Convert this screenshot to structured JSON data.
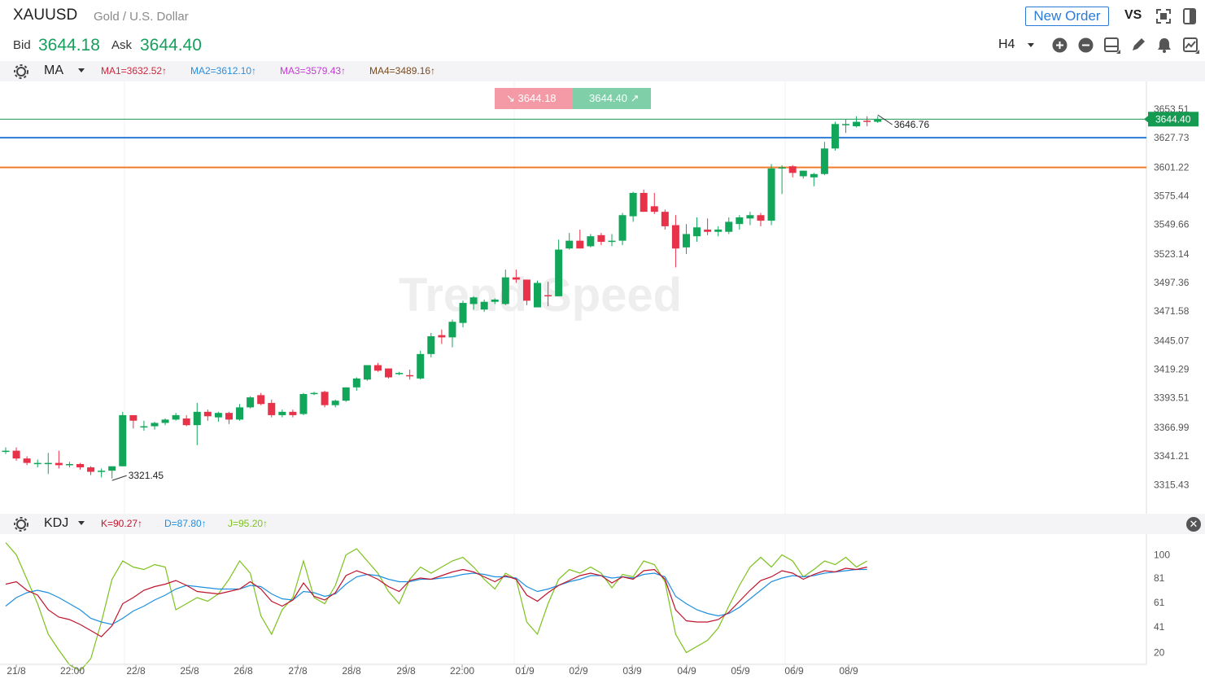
{
  "header": {
    "symbol": "XAUUSD",
    "name": "Gold / U.S. Dollar",
    "bid_label": "Bid",
    "bid": "3644.18",
    "ask_label": "Ask",
    "ask": "3644.40",
    "new_order": "New Order",
    "vs": "VS",
    "timeframe": "H4"
  },
  "ma_bar": {
    "indicator": "MA",
    "ma1": "MA1=3632.52↑",
    "ma2": "MA2=3612.10↑",
    "ma3": "MA3=3579.43↑",
    "ma4": "MA4=3489.16↑",
    "colors": {
      "ma1": "#d0263c",
      "ma2": "#2b8ddc",
      "ma3": "#c43bd6",
      "ma4": "#7a4b20"
    }
  },
  "quote_boxes": {
    "bid": "3644.18",
    "ask": "3644.40"
  },
  "kdj_bar": {
    "indicator": "KDJ",
    "k": "K=90.27↑",
    "d": "D=87.80↑",
    "j": "J=95.20↑",
    "colors": {
      "k": "#c0142c",
      "d": "#1e8fe0",
      "j": "#7cc21c"
    }
  },
  "watermark": "Trend Speed",
  "chart_data": {
    "type": "candlestick",
    "y_ticks": [
      "3653.51",
      "3627.73",
      "3601.22",
      "3575.44",
      "3549.66",
      "3523.14",
      "3497.36",
      "3471.58",
      "3445.07",
      "3419.29",
      "3393.51",
      "3366.99",
      "3341.21",
      "3315.43"
    ],
    "current_price_label": "3644.40",
    "high_annotation": "3646.76",
    "low_annotation": "3321.45",
    "levels": {
      "current": 3644.4,
      "blue_line": 3627.7,
      "orange_line": 3601.0
    },
    "x_labels": [
      "21/8",
      "22:00",
      "22/8",
      "25/8",
      "26/8",
      "27/8",
      "28/8",
      "29/8",
      "22:00",
      "01/9",
      "02/9",
      "03/9",
      "04/9",
      "05/9",
      "06/9",
      "08/9"
    ],
    "candles": [
      [
        3346,
        3349,
        3343,
        3346
      ],
      [
        3346,
        3349,
        3337,
        3339
      ],
      [
        3339,
        3341,
        3333,
        3335
      ],
      [
        3335,
        3338,
        3331,
        3335
      ],
      [
        3335,
        3344,
        3325,
        3335
      ],
      [
        3335,
        3346,
        3330,
        3333
      ],
      [
        3333,
        3336,
        3331,
        3334
      ],
      [
        3334,
        3335,
        3329,
        3331
      ],
      [
        3331,
        3332,
        3324,
        3327
      ],
      [
        3327,
        3330,
        3322,
        3328
      ],
      [
        3328,
        3330,
        3321,
        3332
      ],
      [
        3332,
        3381,
        3332,
        3378
      ],
      [
        3378,
        3378,
        3366,
        3373
      ],
      [
        3367,
        3373,
        3364,
        3368
      ],
      [
        3368,
        3372,
        3365,
        3371
      ],
      [
        3371,
        3375,
        3369,
        3374
      ],
      [
        3374,
        3380,
        3373,
        3378
      ],
      [
        3375,
        3378,
        3368,
        3369
      ],
      [
        3369,
        3389,
        3351,
        3381
      ],
      [
        3381,
        3383,
        3373,
        3377
      ],
      [
        3376,
        3381,
        3372,
        3380
      ],
      [
        3380,
        3381,
        3370,
        3374
      ],
      [
        3374,
        3388,
        3373,
        3385
      ],
      [
        3385,
        3395,
        3384,
        3394
      ],
      [
        3396,
        3398,
        3387,
        3388
      ],
      [
        3389,
        3392,
        3376,
        3378
      ],
      [
        3378,
        3383,
        3376,
        3381
      ],
      [
        3381,
        3383,
        3376,
        3378
      ],
      [
        3379,
        3398,
        3378,
        3397
      ],
      [
        3398,
        3399,
        3396,
        3398
      ],
      [
        3399,
        3400,
        3385,
        3387
      ],
      [
        3387,
        3392,
        3385,
        3391
      ],
      [
        3391,
        3403,
        3390,
        3403
      ],
      [
        3403,
        3412,
        3400,
        3411
      ],
      [
        3410,
        3423,
        3409,
        3423
      ],
      [
        3423,
        3425,
        3417,
        3418
      ],
      [
        3420,
        3420,
        3411,
        3412
      ],
      [
        3415,
        3417,
        3414,
        3416
      ],
      [
        3414,
        3419,
        3410,
        3413
      ],
      [
        3411,
        3436,
        3410,
        3433
      ],
      [
        3433,
        3452,
        3430,
        3449
      ],
      [
        3450,
        3455,
        3442,
        3448
      ],
      [
        3448,
        3464,
        3439,
        3462
      ],
      [
        3461,
        3481,
        3457,
        3479
      ],
      [
        3478,
        3485,
        3473,
        3484
      ],
      [
        3473,
        3482,
        3471,
        3480
      ],
      [
        3480,
        3483,
        3478,
        3482
      ],
      [
        3478,
        3509,
        3477,
        3502
      ],
      [
        3502,
        3509,
        3497,
        3500
      ],
      [
        3500,
        3500,
        3477,
        3481
      ],
      [
        3475,
        3499,
        3475,
        3497
      ],
      [
        3486,
        3498,
        3476,
        3485
      ],
      [
        3485,
        3536,
        3485,
        3527
      ],
      [
        3528,
        3542,
        3527,
        3535
      ],
      [
        3535,
        3545,
        3528,
        3528
      ],
      [
        3530,
        3541,
        3529,
        3539
      ],
      [
        3540,
        3542,
        3531,
        3534
      ],
      [
        3534,
        3541,
        3530,
        3535
      ],
      [
        3535,
        3560,
        3531,
        3558
      ],
      [
        3557,
        3579,
        3552,
        3578
      ],
      [
        3578,
        3581,
        3561,
        3561
      ],
      [
        3566,
        3578,
        3559,
        3561
      ],
      [
        3561,
        3563,
        3545,
        3548
      ],
      [
        3549,
        3558,
        3511,
        3528
      ],
      [
        3529,
        3550,
        3523,
        3541
      ],
      [
        3539,
        3556,
        3534,
        3547
      ],
      [
        3545,
        3555,
        3540,
        3543
      ],
      [
        3543,
        3548,
        3539,
        3545
      ],
      [
        3543,
        3556,
        3541,
        3552
      ],
      [
        3550,
        3558,
        3545,
        3556
      ],
      [
        3555,
        3561,
        3549,
        3558
      ],
      [
        3558,
        3560,
        3548,
        3553
      ],
      [
        3553,
        3604,
        3549,
        3600
      ],
      [
        3600,
        3603,
        3577,
        3601
      ],
      [
        3602,
        3603,
        3592,
        3596
      ],
      [
        3593,
        3598,
        3591,
        3598
      ],
      [
        3592,
        3596,
        3584,
        3595
      ],
      [
        3595,
        3624,
        3594,
        3618
      ],
      [
        3618,
        3642,
        3616,
        3640
      ],
      [
        3640,
        3644,
        3632,
        3640
      ],
      [
        3638,
        3647,
        3637,
        3642
      ],
      [
        3643,
        3647,
        3638,
        3642
      ],
      [
        3642,
        3647,
        3641,
        3644
      ]
    ]
  },
  "kdj_chart": {
    "y_ticks": [
      "100",
      "81",
      "61",
      "41",
      "20"
    ],
    "K": [
      76,
      78,
      71,
      67,
      55,
      49,
      47,
      43,
      38,
      33,
      42,
      60,
      65,
      71,
      74,
      76,
      79,
      75,
      70,
      69,
      68,
      70,
      72,
      78,
      72,
      62,
      58,
      63,
      77,
      66,
      63,
      69,
      83,
      87,
      84,
      80,
      74,
      70,
      79,
      81,
      80,
      83,
      86,
      88,
      86,
      82,
      78,
      83,
      80,
      67,
      62,
      69,
      75,
      79,
      83,
      85,
      83,
      77,
      82,
      80,
      87,
      88,
      80,
      55,
      46,
      45,
      45,
      47,
      53,
      62,
      71,
      79,
      82,
      87,
      85,
      80,
      84,
      87,
      86,
      89,
      88,
      90
    ],
    "D": [
      58,
      65,
      69,
      71,
      69,
      65,
      60,
      55,
      48,
      45,
      43,
      48,
      54,
      58,
      63,
      67,
      72,
      75,
      74,
      73,
      72,
      72,
      72,
      75,
      74,
      68,
      64,
      63,
      70,
      69,
      66,
      68,
      76,
      82,
      84,
      83,
      80,
      78,
      78,
      80,
      80,
      81,
      82,
      84,
      85,
      84,
      82,
      82,
      81,
      74,
      70,
      72,
      75,
      78,
      80,
      83,
      83,
      81,
      82,
      81,
      84,
      85,
      82,
      66,
      60,
      55,
      52,
      50,
      52,
      57,
      64,
      71,
      78,
      81,
      83,
      82,
      83,
      85,
      86,
      87,
      88,
      88
    ],
    "J": [
      110,
      100,
      80,
      60,
      35,
      22,
      10,
      5,
      15,
      45,
      80,
      95,
      90,
      88,
      92,
      90,
      55,
      60,
      65,
      62,
      68,
      80,
      95,
      85,
      50,
      35,
      55,
      65,
      95,
      65,
      60,
      75,
      100,
      105,
      95,
      85,
      70,
      60,
      80,
      90,
      85,
      90,
      95,
      98,
      90,
      80,
      72,
      85,
      80,
      45,
      35,
      60,
      80,
      88,
      85,
      90,
      85,
      73,
      84,
      82,
      95,
      92,
      78,
      35,
      20,
      25,
      30,
      40,
      58,
      75,
      90,
      98,
      90,
      100,
      95,
      82,
      88,
      95,
      92,
      98,
      90,
      95
    ]
  }
}
